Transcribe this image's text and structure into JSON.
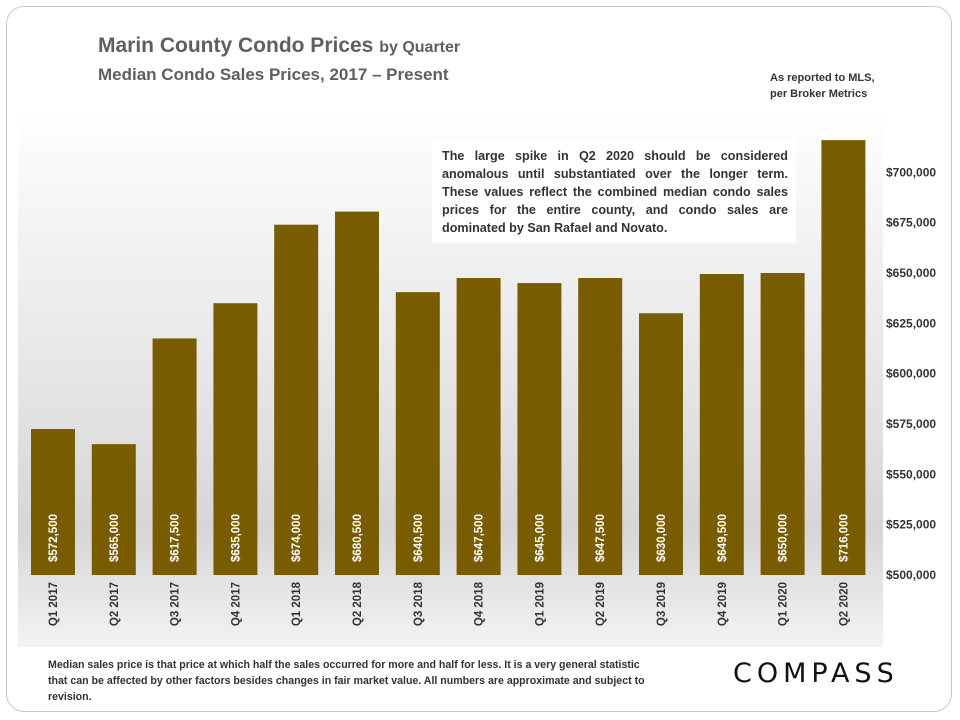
{
  "header": {
    "title": "Marin County Condo Prices",
    "title_suffix": "by Quarter",
    "subtitle": "Median Condo Sales Prices, 2017 – Present",
    "source_line1": "As reported to MLS,",
    "source_line2": "per Broker Metrics"
  },
  "note": "The large spike in Q2 2020 should be considered anomalous until substantiated over the longer term. These values reflect the combined median condo sales prices for the entire county, and condo sales are dominated by San Rafael and Novato.",
  "footnote": "Median sales price is that price at which half the sales occurred for more and half for less. It is a very general statistic that can be affected by other factors besides changes in fair market value. All numbers are approximate and subject to revision.",
  "logo": "COMPASS",
  "colors": {
    "bar": "#7a5c00",
    "label": "#ffffff",
    "axis_text": "#333333"
  },
  "chart_data": {
    "type": "bar",
    "title": "Marin County Condo Prices by Quarter",
    "subtitle": "Median Condo Sales Prices, 2017 – Present",
    "categories": [
      "Q1 2017",
      "Q2 2017",
      "Q3 2017",
      "Q4 2017",
      "Q1 2018",
      "Q2 2018",
      "Q3 2018",
      "Q4 2018",
      "Q1 2019",
      "Q2 2019",
      "Q3 2019",
      "Q4 2019",
      "Q1 2020",
      "Q2 2020"
    ],
    "values": [
      572500,
      565000,
      617500,
      635000,
      674000,
      680500,
      640500,
      647500,
      645000,
      647500,
      630000,
      649500,
      650000,
      716000
    ],
    "value_labels": [
      "$572,500",
      "$565,000",
      "$617,500",
      "$635,000",
      "$674,000",
      "$680,500",
      "$640,500",
      "$647,500",
      "$645,000",
      "$647,500",
      "$630,000",
      "$649,500",
      "$650,000",
      "$716,000"
    ],
    "ylim": [
      500000,
      725000
    ],
    "y_ticks": [
      500000,
      525000,
      550000,
      575000,
      600000,
      625000,
      650000,
      675000,
      700000
    ],
    "y_tick_labels": [
      "$500,000",
      "$525,000",
      "$550,000",
      "$575,000",
      "$600,000",
      "$625,000",
      "$650,000",
      "$675,000",
      "$700,000"
    ],
    "y_axis_position": "right",
    "grid": false,
    "xlabel": "",
    "ylabel": ""
  }
}
